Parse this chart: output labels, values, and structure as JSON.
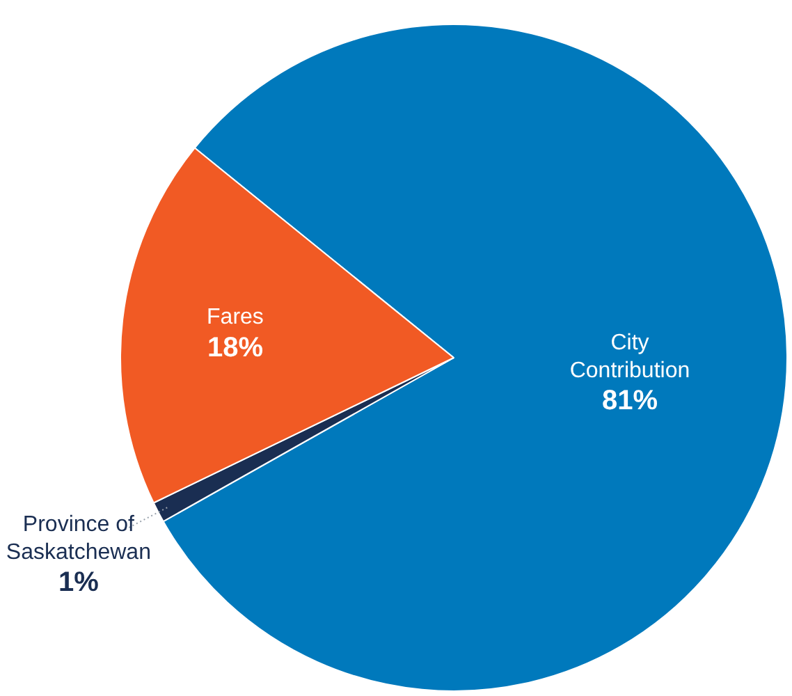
{
  "chart_data": {
    "type": "pie",
    "categories": [
      "City Contribution",
      "Province of Saskatchewan",
      "Fares"
    ],
    "values": [
      81,
      1,
      18
    ],
    "colors": [
      "#0079bc",
      "#1a2e52",
      "#f15a24"
    ],
    "value_labels": [
      "81%",
      "1%",
      "18%"
    ],
    "legend": false
  }
}
